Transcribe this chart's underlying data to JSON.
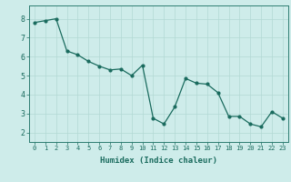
{
  "x": [
    0,
    1,
    2,
    3,
    4,
    5,
    6,
    7,
    8,
    9,
    10,
    11,
    12,
    13,
    14,
    15,
    16,
    17,
    18,
    19,
    20,
    21,
    22,
    23
  ],
  "y": [
    7.8,
    7.9,
    8.0,
    6.3,
    6.1,
    5.75,
    5.5,
    5.3,
    5.35,
    5.0,
    5.55,
    2.75,
    2.45,
    3.35,
    4.85,
    4.6,
    4.55,
    4.1,
    2.85,
    2.85,
    2.45,
    2.3,
    3.1,
    2.75
  ],
  "line_color": "#1a6b5e",
  "marker": "o",
  "markersize": 2.0,
  "linewidth": 0.9,
  "xlabel": "Humidex (Indice chaleur)",
  "xlim": [
    -0.5,
    23.5
  ],
  "ylim": [
    1.5,
    8.7
  ],
  "yticks": [
    2,
    3,
    4,
    5,
    6,
    7,
    8
  ],
  "xticks": [
    0,
    1,
    2,
    3,
    4,
    5,
    6,
    7,
    8,
    9,
    10,
    11,
    12,
    13,
    14,
    15,
    16,
    17,
    18,
    19,
    20,
    21,
    22,
    23
  ],
  "bg_color": "#ceecea",
  "grid_color": "#b2d8d4",
  "axis_color": "#2e7d72",
  "tick_color": "#1a6b5e",
  "label_color": "#1a6b5e",
  "xlabel_fontsize": 6.5,
  "ytick_fontsize": 6.0,
  "xtick_fontsize": 5.0
}
